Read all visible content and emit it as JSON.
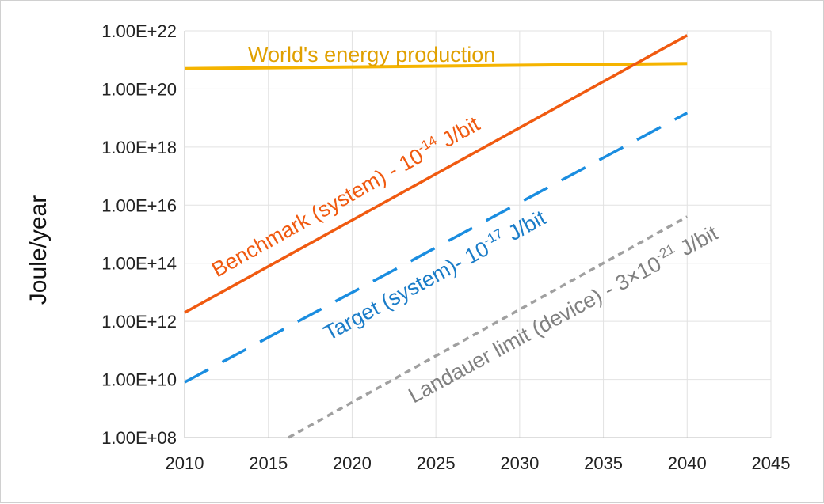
{
  "chart_data": {
    "type": "line",
    "title": "",
    "xlabel": "",
    "ylabel": "Joule/year",
    "xlim": [
      2010,
      2045
    ],
    "ylim": [
      100000000.0,
      1e+22
    ],
    "yscale": "log",
    "grid": true,
    "legend": "none",
    "x_ticks": [
      "2010",
      "2015",
      "2020",
      "2025",
      "2030",
      "2035",
      "2040",
      "2045"
    ],
    "y_ticks": [
      "1.00E+08",
      "1.00E+10",
      "1.00E+12",
      "1.00E+14",
      "1.00E+16",
      "1.00E+18",
      "1.00E+20",
      "1.00E+22"
    ],
    "series": [
      {
        "key": "world",
        "color": "#f5b400",
        "style": "solid",
        "x": [
          2010,
          2040
        ],
        "y": [
          5e+20,
          7.5e+20
        ],
        "label_parts": [
          {
            "text": "World's energy production"
          }
        ]
      },
      {
        "key": "benchmark",
        "color": "#f05a10",
        "style": "solid",
        "x": [
          2010,
          2040
        ],
        "y": [
          2000000000000.0,
          7e+21
        ],
        "label_parts": [
          {
            "text": "Benchmark (system) - 10"
          },
          {
            "text": "-14",
            "sup": true
          },
          {
            "text": " J/bit"
          }
        ]
      },
      {
        "key": "target",
        "color": "#1a8de0",
        "style": "dashed",
        "x": [
          2010,
          2040
        ],
        "y": [
          8000000000.0,
          1.5e+19
        ],
        "label_parts": [
          {
            "text": "Target (system)- 10"
          },
          {
            "text": "-17",
            "sup": true
          },
          {
            "text": " J/bit"
          }
        ]
      },
      {
        "key": "landauer",
        "color": "#a0a0a0",
        "style": "dotted",
        "x": [
          2016.2,
          2040
        ],
        "y": [
          100000000.0,
          4000000000000000.0
        ],
        "label_parts": [
          {
            "text": "Landauer limit (device) - 3×10"
          },
          {
            "text": "-21",
            "sup": true
          },
          {
            "text": " J/bit"
          }
        ]
      }
    ]
  }
}
